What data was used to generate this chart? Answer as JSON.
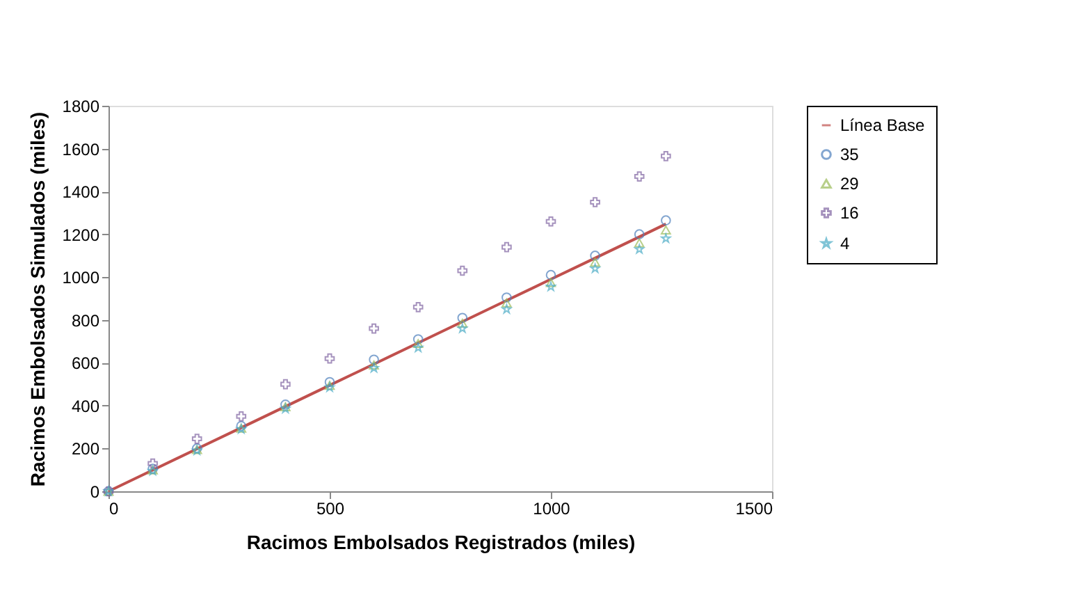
{
  "chart_data": {
    "type": "scatter",
    "xlabel": "Racimos Embolsados Registrados (miles)",
    "ylabel": "Racimos Embolsados Simulados (miles)",
    "x": [
      0,
      100,
      200,
      300,
      400,
      500,
      600,
      700,
      800,
      900,
      1000,
      1100,
      1200,
      1260
    ],
    "series": [
      {
        "name": "Línea Base",
        "type": "line",
        "marker": "none",
        "color": "#c0504d",
        "values": [
          0,
          99,
          198,
          297,
          396,
          495,
          594,
          693,
          792,
          891,
          990,
          1089,
          1188,
          1248
        ]
      },
      {
        "name": "35",
        "marker": "circle",
        "color": "#4f81bd",
        "values": [
          0,
          105,
          200,
          305,
          405,
          510,
          615,
          710,
          810,
          905,
          1010,
          1100,
          1200,
          1265
        ]
      },
      {
        "name": "29",
        "marker": "triangle",
        "color": "#9bbb59",
        "values": [
          0,
          100,
          195,
          295,
          395,
          495,
          590,
          690,
          785,
          880,
          975,
          1070,
          1160,
          1220
        ]
      },
      {
        "name": "16",
        "marker": "cross",
        "color": "#8064a2",
        "values": [
          0,
          130,
          245,
          350,
          500,
          620,
          760,
          860,
          1030,
          1140,
          1260,
          1350,
          1470,
          1565
        ]
      },
      {
        "name": "4",
        "marker": "star",
        "color": "#4bacc6",
        "values": [
          0,
          95,
          190,
          290,
          385,
          485,
          575,
          670,
          760,
          850,
          955,
          1040,
          1130,
          1180
        ]
      }
    ],
    "xlim": [
      0,
      1500
    ],
    "xticks": [
      0,
      500,
      1000,
      1500
    ],
    "ylim": [
      0,
      1800
    ],
    "yticks": [
      0,
      200,
      400,
      600,
      800,
      1000,
      1200,
      1400,
      1600,
      1800
    ],
    "grid": false,
    "legend": "right"
  }
}
